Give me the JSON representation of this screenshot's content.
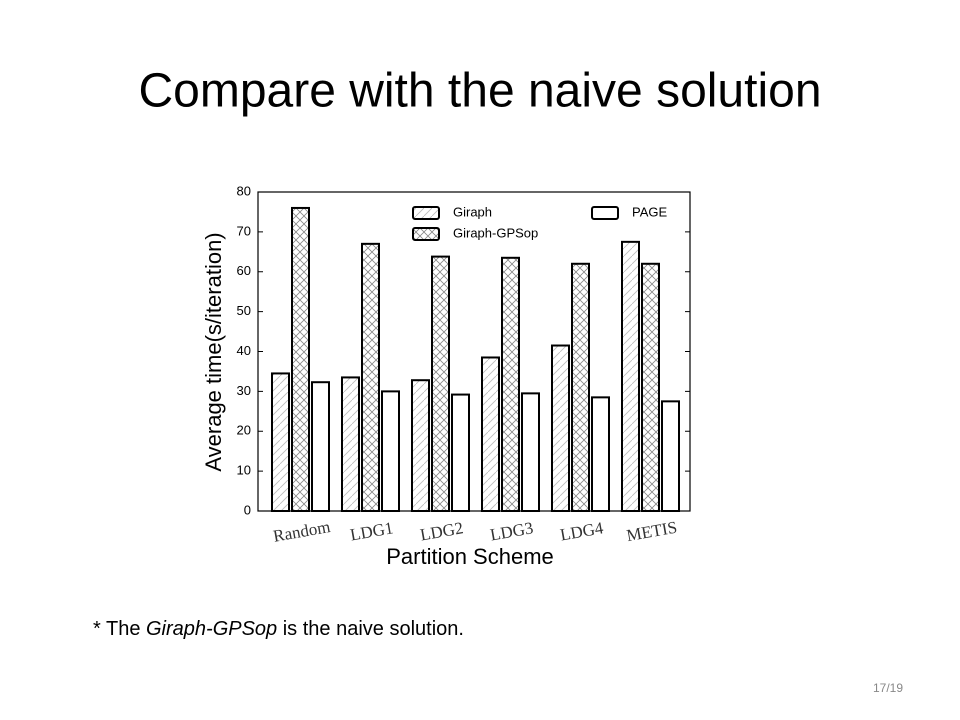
{
  "slide_title": "Compare with the naive solution",
  "footnote": {
    "before": "* The ",
    "emphasis": "Giraph-GPSop",
    "after": " is the naive solution."
  },
  "page_number": "17/19",
  "chart_data": {
    "type": "bar",
    "x_label": "Partition Scheme",
    "y_label": "Average time(s/iteration)",
    "categories": [
      "Random",
      "LDG1",
      "LDG2",
      "LDG3",
      "LDG4",
      "METIS"
    ],
    "series": [
      {
        "name": "Giraph",
        "color": "#000000",
        "hatch": "diagonal",
        "values": [
          34.5,
          33.5,
          32.8,
          38.5,
          41.5,
          67.5
        ]
      },
      {
        "name": "Giraph-GPSop",
        "color": "#000000",
        "hatch": "cross",
        "values": [
          76,
          67,
          63.8,
          63.5,
          62,
          62
        ]
      },
      {
        "name": "PAGE",
        "color": "#000000",
        "hatch": "none",
        "values": [
          32.3,
          30,
          29.2,
          29.5,
          28.5,
          27.5
        ]
      }
    ],
    "ylim": [
      0,
      80
    ],
    "yticks": [
      0,
      10,
      20,
      30,
      40,
      50,
      60,
      70,
      80
    ],
    "grid": false,
    "legend": "top"
  }
}
